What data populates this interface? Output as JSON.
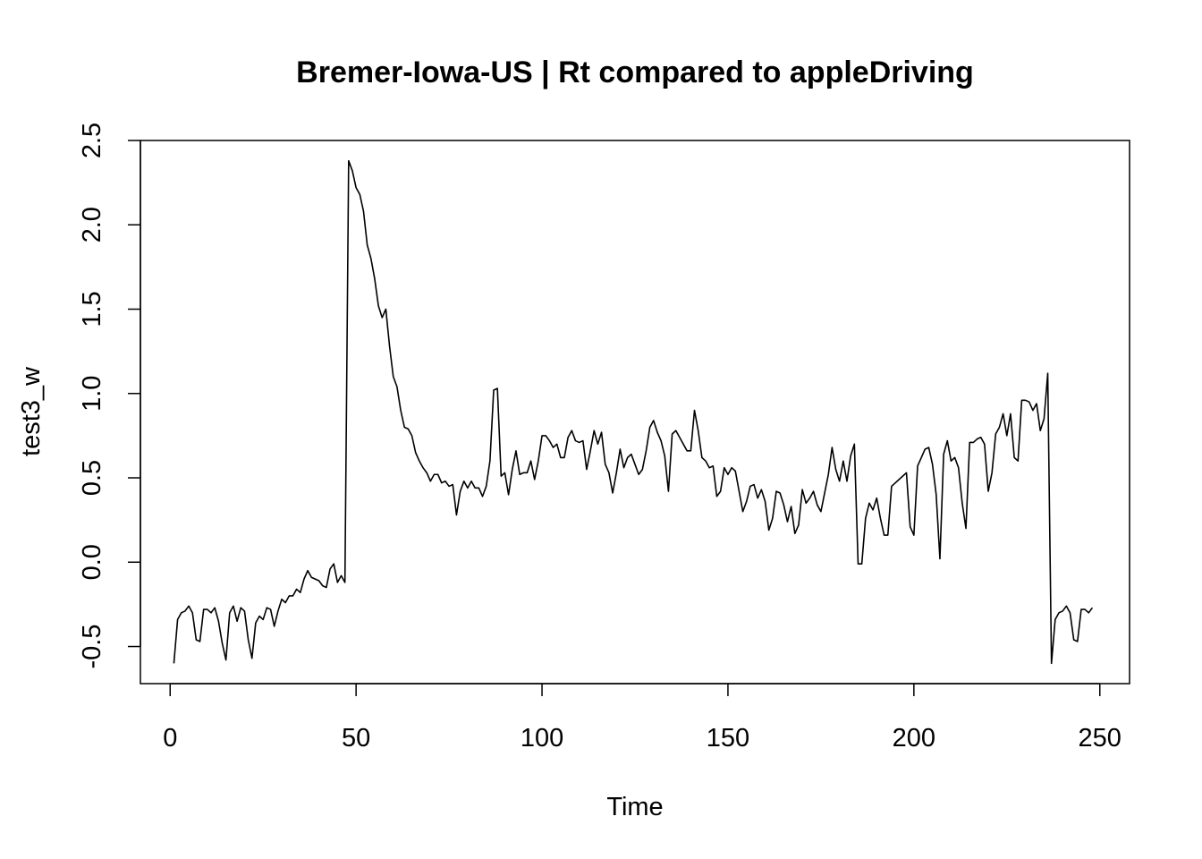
{
  "chart_data": {
    "type": "line",
    "title": "Bremer-Iowa-US | Rt compared to appleDriving",
    "xlabel": "Time",
    "ylabel": "test3_w",
    "xlim": [
      -8,
      258
    ],
    "ylim": [
      -0.72,
      2.5
    ],
    "xticks": [
      0,
      50,
      100,
      150,
      200,
      250
    ],
    "xtick_labels": [
      "0",
      "50",
      "100",
      "150",
      "200",
      "250"
    ],
    "yticks": [
      -0.5,
      0.0,
      0.5,
      1.0,
      1.5,
      2.0,
      2.5
    ],
    "ytick_labels": [
      "-0.5",
      "0.0",
      "0.5",
      "1.0",
      "1.5",
      "2.0",
      "2.5"
    ],
    "grid": false,
    "series": [
      {
        "x_start": 1,
        "values": [
          -0.6,
          -0.34,
          -0.3,
          -0.29,
          -0.26,
          -0.3,
          -0.46,
          -0.47,
          -0.28,
          -0.28,
          -0.3,
          -0.27,
          -0.35,
          -0.48,
          -0.58,
          -0.3,
          -0.26,
          -0.35,
          -0.27,
          -0.29,
          -0.46,
          -0.57,
          -0.36,
          -0.32,
          -0.34,
          -0.27,
          -0.28,
          -0.38,
          -0.29,
          -0.22,
          -0.24,
          -0.2,
          -0.2,
          -0.16,
          -0.18,
          -0.1,
          -0.05,
          -0.09,
          -0.1,
          -0.11,
          -0.14,
          -0.15,
          -0.04,
          -0.01,
          -0.12,
          -0.08,
          -0.12,
          2.38,
          2.32,
          2.22,
          2.18,
          2.08,
          1.88,
          1.8,
          1.68,
          1.52,
          1.45,
          1.5,
          1.28,
          1.1,
          1.04,
          0.9,
          0.8,
          0.79,
          0.75,
          0.65,
          0.6,
          0.56,
          0.53,
          0.48,
          0.52,
          0.52,
          0.47,
          0.48,
          0.45,
          0.46,
          0.28,
          0.42,
          0.48,
          0.44,
          0.48,
          0.44,
          0.44,
          0.39,
          0.45,
          0.6,
          1.02,
          1.03,
          0.51,
          0.53,
          0.4,
          0.55,
          0.66,
          0.52,
          0.53,
          0.53,
          0.6,
          0.49,
          0.6,
          0.75,
          0.75,
          0.72,
          0.68,
          0.7,
          0.62,
          0.62,
          0.74,
          0.78,
          0.72,
          0.71,
          0.72,
          0.55,
          0.66,
          0.78,
          0.7,
          0.77,
          0.58,
          0.53,
          0.41,
          0.53,
          0.67,
          0.56,
          0.62,
          0.64,
          0.58,
          0.52,
          0.55,
          0.66,
          0.8,
          0.84,
          0.77,
          0.72,
          0.63,
          0.42,
          0.76,
          0.78,
          0.74,
          0.7,
          0.66,
          0.66,
          0.9,
          0.78,
          0.62,
          0.6,
          0.56,
          0.57,
          0.39,
          0.42,
          0.56,
          0.52,
          0.56,
          0.54,
          0.42,
          0.3,
          0.36,
          0.45,
          0.46,
          0.38,
          0.43,
          0.36,
          0.19,
          0.26,
          0.42,
          0.41,
          0.34,
          0.24,
          0.33,
          0.17,
          0.22,
          0.43,
          0.35,
          0.38,
          0.42,
          0.34,
          0.3,
          0.41,
          0.52,
          0.68,
          0.55,
          0.48,
          0.6,
          0.48,
          0.63,
          0.7,
          -0.01,
          -0.01,
          0.26,
          0.35,
          0.31,
          0.38,
          0.26,
          0.16,
          0.16,
          0.45,
          0.47,
          0.49,
          0.51,
          0.53,
          0.21,
          0.16,
          0.57,
          0.62,
          0.67,
          0.68,
          0.58,
          0.4,
          0.02,
          0.64,
          0.72,
          0.6,
          0.62,
          0.56,
          0.35,
          0.2,
          0.71,
          0.71,
          0.73,
          0.74,
          0.7,
          0.42,
          0.53,
          0.76,
          0.8,
          0.88,
          0.75,
          0.88,
          0.62,
          0.6,
          0.96,
          0.96,
          0.95,
          0.9,
          0.94,
          0.78,
          0.85,
          1.12,
          -0.6,
          -0.34,
          -0.3,
          -0.29,
          -0.26,
          -0.3,
          -0.46,
          -0.47,
          -0.28,
          -0.28,
          -0.3,
          -0.27
        ]
      }
    ]
  }
}
